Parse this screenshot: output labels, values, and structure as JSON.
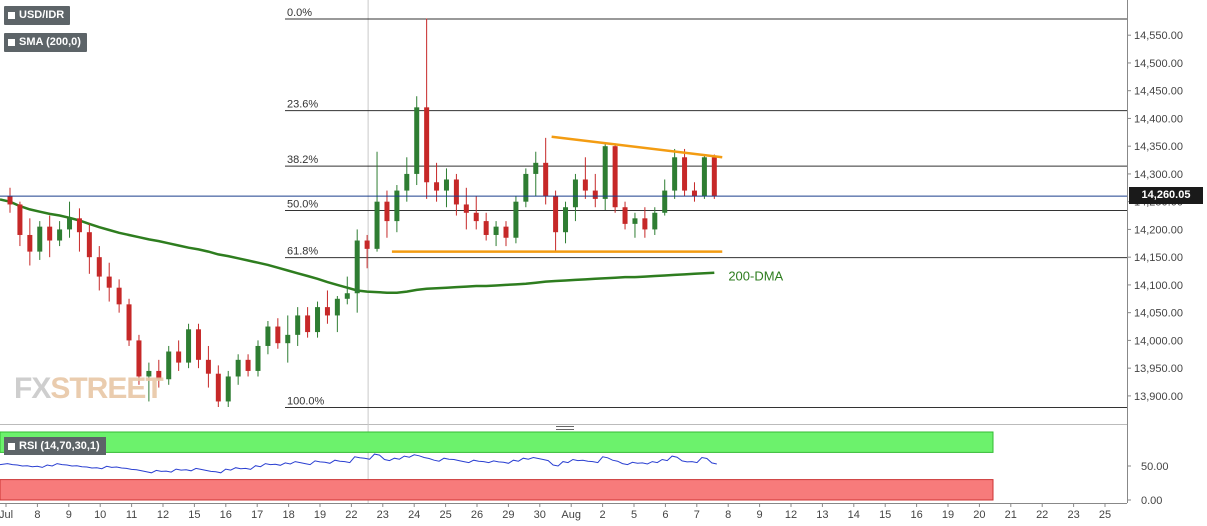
{
  "header": {
    "symbol": "USD/IDR",
    "indicator": "SMA (200,0)",
    "rsi_label": "RSI (14,70,30,1)",
    "last_price": "14,260.05",
    "logo_fx": "FX",
    "logo_street": "STREET"
  },
  "colors": {
    "bull": "#2e7d32",
    "bear": "#c62828",
    "sma": "#2e7d1f",
    "trendline": "#f39c12",
    "rsi_line": "#2a3fd1",
    "rsi_overbought_fill": "#6cf26c",
    "rsi_oversold_fill": "#f77b7b"
  },
  "chart_data": [
    {
      "type": "candlestick",
      "title": "USD/IDR",
      "y_range": [
        13880,
        14590
      ],
      "y_ticks": [
        {
          "value": 13900,
          "label": "13,900.00"
        },
        {
          "value": 13950,
          "label": "13,950.00"
        },
        {
          "value": 14000,
          "label": "14,000.00"
        },
        {
          "value": 14050,
          "label": "14,050.00"
        },
        {
          "value": 14100,
          "label": "14,100.00"
        },
        {
          "value": 14150,
          "label": "14,150.00"
        },
        {
          "value": 14200,
          "label": "14,200.00"
        },
        {
          "value": 14250,
          "label": "14,250.00"
        },
        {
          "value": 14300,
          "label": "14,300.00"
        },
        {
          "value": 14350,
          "label": "14,350.00"
        },
        {
          "value": 14400,
          "label": "14,400.00"
        },
        {
          "value": 14450,
          "label": "14,450.00"
        },
        {
          "value": 14500,
          "label": "14,500.00"
        },
        {
          "value": 14550,
          "label": "14,550.00"
        }
      ],
      "x_ticks": [
        "Jul",
        "8",
        "9",
        "10",
        "11",
        "12",
        "15",
        "16",
        "17",
        "18",
        "19",
        "22",
        "23",
        "24",
        "25",
        "26",
        "29",
        "30",
        "Aug",
        "2",
        "5",
        "6",
        "7",
        "8",
        "9",
        "12",
        "13",
        "14",
        "15",
        "16",
        "19",
        "20",
        "21",
        "22",
        "23",
        "25"
      ],
      "candles": [
        {
          "o": 14260,
          "h": 14275,
          "l": 14230,
          "c": 14245
        },
        {
          "o": 14245,
          "h": 14250,
          "l": 14170,
          "c": 14190
        },
        {
          "o": 14190,
          "h": 14220,
          "l": 14135,
          "c": 14160
        },
        {
          "o": 14160,
          "h": 14215,
          "l": 14145,
          "c": 14205
        },
        {
          "o": 14205,
          "h": 14225,
          "l": 14150,
          "c": 14180
        },
        {
          "o": 14180,
          "h": 14215,
          "l": 14170,
          "c": 14200
        },
        {
          "o": 14200,
          "h": 14250,
          "l": 14185,
          "c": 14220
        },
        {
          "o": 14220,
          "h": 14238,
          "l": 14160,
          "c": 14195
        },
        {
          "o": 14195,
          "h": 14210,
          "l": 14120,
          "c": 14150
        },
        {
          "o": 14150,
          "h": 14170,
          "l": 14090,
          "c": 14115
        },
        {
          "o": 14115,
          "h": 14140,
          "l": 14070,
          "c": 14095
        },
        {
          "o": 14095,
          "h": 14110,
          "l": 14050,
          "c": 14065
        },
        {
          "o": 14065,
          "h": 14075,
          "l": 13990,
          "c": 14000
        },
        {
          "o": 14000,
          "h": 14010,
          "l": 13920,
          "c": 13935
        },
        {
          "o": 13935,
          "h": 13960,
          "l": 13890,
          "c": 13945
        },
        {
          "o": 13945,
          "h": 13965,
          "l": 13915,
          "c": 13930
        },
        {
          "o": 13930,
          "h": 13990,
          "l": 13920,
          "c": 13980
        },
        {
          "o": 13980,
          "h": 14000,
          "l": 13945,
          "c": 13960
        },
        {
          "o": 13960,
          "h": 14030,
          "l": 13950,
          "c": 14020
        },
        {
          "o": 14020,
          "h": 14030,
          "l": 13950,
          "c": 13965
        },
        {
          "o": 13965,
          "h": 13990,
          "l": 13915,
          "c": 13940
        },
        {
          "o": 13940,
          "h": 13955,
          "l": 13880,
          "c": 13890
        },
        {
          "o": 13890,
          "h": 13945,
          "l": 13880,
          "c": 13935
        },
        {
          "o": 13935,
          "h": 13975,
          "l": 13920,
          "c": 13965
        },
        {
          "o": 13965,
          "h": 13975,
          "l": 13935,
          "c": 13945
        },
        {
          "o": 13945,
          "h": 14000,
          "l": 13935,
          "c": 13990
        },
        {
          "o": 13990,
          "h": 14035,
          "l": 13975,
          "c": 14025
        },
        {
          "o": 14025,
          "h": 14040,
          "l": 13985,
          "c": 13995
        },
        {
          "o": 13995,
          "h": 14045,
          "l": 13960,
          "c": 14010
        },
        {
          "o": 14010,
          "h": 14060,
          "l": 13990,
          "c": 14045
        },
        {
          "o": 14045,
          "h": 14060,
          "l": 14005,
          "c": 14015
        },
        {
          "o": 14015,
          "h": 14070,
          "l": 14005,
          "c": 14060
        },
        {
          "o": 14060,
          "h": 14090,
          "l": 14030,
          "c": 14045
        },
        {
          "o": 14045,
          "h": 14080,
          "l": 14015,
          "c": 14075
        },
        {
          "o": 14075,
          "h": 14115,
          "l": 14065,
          "c": 14085
        },
        {
          "o": 14085,
          "h": 14200,
          "l": 14050,
          "c": 14180
        },
        {
          "o": 14180,
          "h": 14190,
          "l": 14130,
          "c": 14165
        },
        {
          "o": 14165,
          "h": 14340,
          "l": 14160,
          "c": 14250
        },
        {
          "o": 14250,
          "h": 14270,
          "l": 14185,
          "c": 14215
        },
        {
          "o": 14215,
          "h": 14280,
          "l": 14195,
          "c": 14270
        },
        {
          "o": 14270,
          "h": 14330,
          "l": 14250,
          "c": 14300
        },
        {
          "o": 14300,
          "h": 14440,
          "l": 14280,
          "c": 14420
        },
        {
          "o": 14420,
          "h": 14580,
          "l": 14255,
          "c": 14285
        },
        {
          "o": 14285,
          "h": 14320,
          "l": 14250,
          "c": 14270
        },
        {
          "o": 14270,
          "h": 14310,
          "l": 14240,
          "c": 14290
        },
        {
          "o": 14290,
          "h": 14300,
          "l": 14225,
          "c": 14245
        },
        {
          "o": 14245,
          "h": 14275,
          "l": 14200,
          "c": 14230
        },
        {
          "o": 14230,
          "h": 14260,
          "l": 14200,
          "c": 14215
        },
        {
          "o": 14215,
          "h": 14230,
          "l": 14180,
          "c": 14190
        },
        {
          "o": 14190,
          "h": 14215,
          "l": 14170,
          "c": 14205
        },
        {
          "o": 14205,
          "h": 14215,
          "l": 14170,
          "c": 14185
        },
        {
          "o": 14185,
          "h": 14260,
          "l": 14175,
          "c": 14250
        },
        {
          "o": 14250,
          "h": 14310,
          "l": 14240,
          "c": 14300
        },
        {
          "o": 14300,
          "h": 14340,
          "l": 14260,
          "c": 14320
        },
        {
          "o": 14320,
          "h": 14365,
          "l": 14245,
          "c": 14260
        },
        {
          "o": 14260,
          "h": 14270,
          "l": 14160,
          "c": 14195
        },
        {
          "o": 14195,
          "h": 14250,
          "l": 14175,
          "c": 14240
        },
        {
          "o": 14240,
          "h": 14300,
          "l": 14215,
          "c": 14290
        },
        {
          "o": 14290,
          "h": 14330,
          "l": 14255,
          "c": 14270
        },
        {
          "o": 14270,
          "h": 14300,
          "l": 14240,
          "c": 14255
        },
        {
          "o": 14255,
          "h": 14355,
          "l": 14235,
          "c": 14350
        },
        {
          "o": 14350,
          "h": 14355,
          "l": 14230,
          "c": 14240
        },
        {
          "o": 14240,
          "h": 14250,
          "l": 14200,
          "c": 14210
        },
        {
          "o": 14210,
          "h": 14230,
          "l": 14185,
          "c": 14220
        },
        {
          "o": 14220,
          "h": 14240,
          "l": 14185,
          "c": 14200
        },
        {
          "o": 14200,
          "h": 14240,
          "l": 14190,
          "c": 14230
        },
        {
          "o": 14230,
          "h": 14290,
          "l": 14225,
          "c": 14270
        },
        {
          "o": 14270,
          "h": 14345,
          "l": 14255,
          "c": 14330
        },
        {
          "o": 14330,
          "h": 14345,
          "l": 14260,
          "c": 14270
        },
        {
          "o": 14270,
          "h": 14285,
          "l": 14250,
          "c": 14260
        },
        {
          "o": 14260,
          "h": 14335,
          "l": 14255,
          "c": 14330
        },
        {
          "o": 14330,
          "h": 14335,
          "l": 14255,
          "c": 14260
        }
      ],
      "sma200": [
        14250,
        14242,
        14236,
        14232,
        14228,
        14225,
        14221,
        14216,
        14210,
        14204,
        14199,
        14194,
        14190,
        14186,
        14182,
        14179,
        14175,
        14171,
        14167,
        14164,
        14160,
        14155,
        14152,
        14148,
        14144,
        14140,
        14136,
        14131,
        14126,
        14121,
        14116,
        14111,
        14105,
        14100,
        14095,
        14090,
        14088,
        14087,
        14086,
        14086,
        14088,
        14091,
        14093,
        14094,
        14095,
        14096,
        14097,
        14098,
        14098,
        14099,
        14100,
        14101,
        14102,
        14104,
        14106,
        14107,
        14108,
        14109,
        14110,
        14111,
        14112,
        14113,
        14114,
        14114,
        14115,
        14116,
        14117,
        14118,
        14119,
        14120,
        14121,
        14122
      ],
      "sma_label": "200-DMA",
      "fibonacci": [
        {
          "label": "0.0%",
          "value": 14580
        },
        {
          "label": "23.6%",
          "value": 14415
        },
        {
          "label": "38.2%",
          "value": 14315
        },
        {
          "label": "50.0%",
          "value": 14235
        },
        {
          "label": "61.8%",
          "value": 14150
        },
        {
          "label": "100.0%",
          "value": 13880
        }
      ],
      "resistance_line": {
        "from": {
          "index": 54.6,
          "value": 14367
        },
        "to": {
          "index": 71.8,
          "value": 14330
        }
      },
      "support_line": {
        "from": {
          "index": 38.5,
          "value": 14160
        },
        "to": {
          "index": 71.8,
          "value": 14160
        }
      },
      "last_value": 14260.05
    },
    {
      "type": "line",
      "title": "RSI (14,70,30,1)",
      "y_range": [
        0,
        100
      ],
      "y_ticks": [
        {
          "value": 50,
          "label": "50.00"
        },
        {
          "value": 0,
          "label": "0.00"
        }
      ],
      "overbought": 70,
      "oversold": 30,
      "values": [
        52,
        50,
        49,
        48,
        50,
        52,
        50,
        49,
        47,
        46,
        48,
        47,
        45,
        43,
        40,
        42,
        41,
        44,
        43,
        45,
        42,
        40,
        44,
        46,
        45,
        49,
        52,
        51,
        53,
        55,
        52,
        56,
        54,
        57,
        55,
        62,
        60,
        66,
        58,
        60,
        63,
        65,
        61,
        57,
        60,
        58,
        55,
        57,
        55,
        56,
        54,
        57,
        60,
        61,
        58,
        50,
        55,
        58,
        57,
        55,
        62,
        57,
        52,
        54,
        53,
        55,
        58,
        63,
        56,
        55,
        61,
        53
      ]
    }
  ]
}
